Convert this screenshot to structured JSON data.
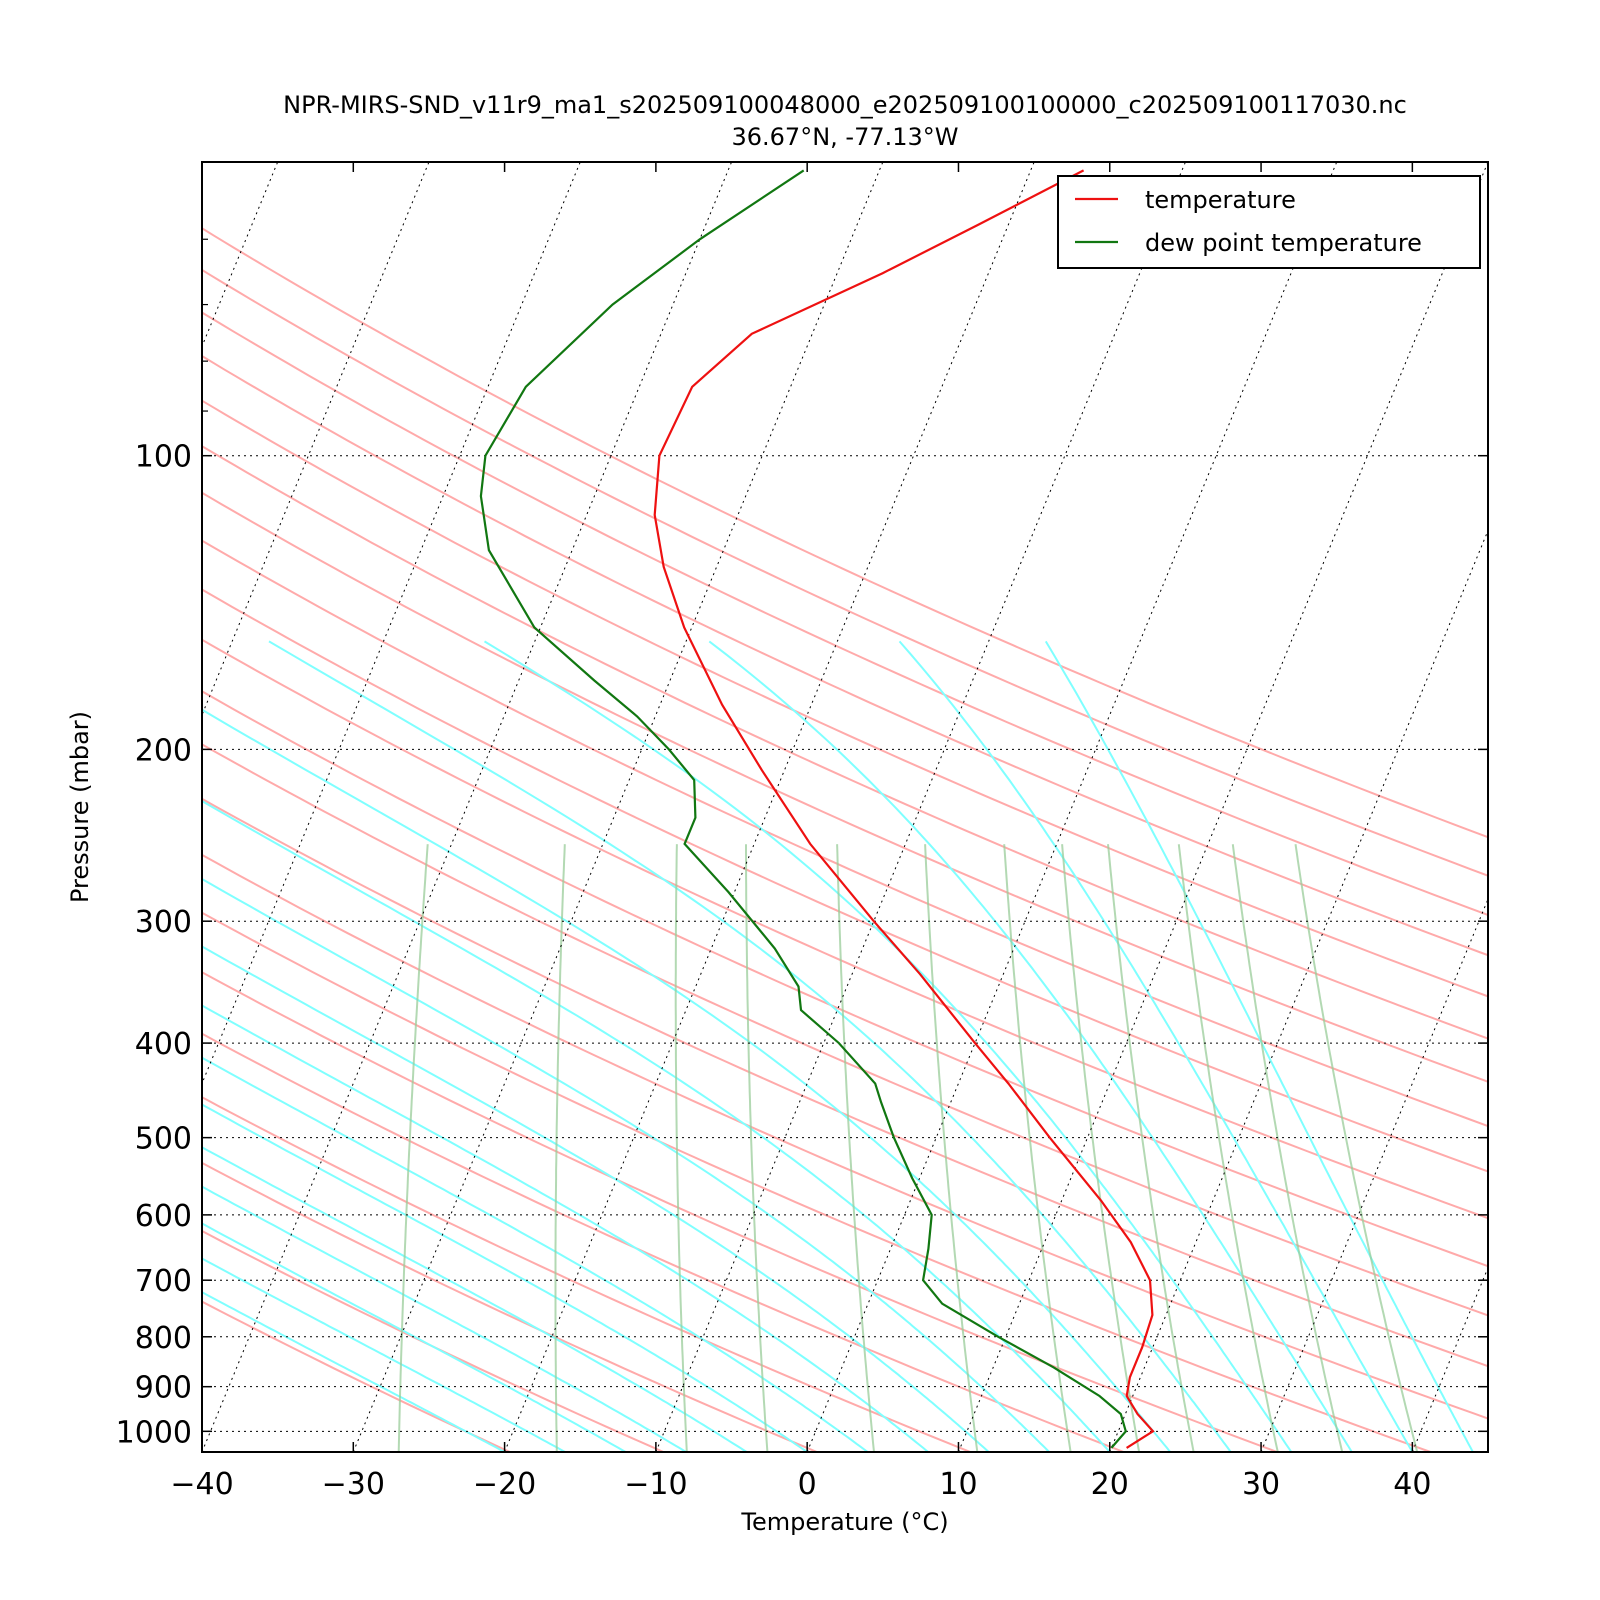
{
  "chart_data": {
    "type": "line",
    "subtype": "skew-t log-p diagram",
    "title": "NPR-MIRS-SND_v11r9_ma1_s202509100048000_e202509100100000_c202509100117030.nc",
    "subtitle": "36.67°N, -77.13°W",
    "xlabel": "Temperature (°C)",
    "ylabel": "Pressure (mbar)",
    "xlim": [
      -40,
      45
    ],
    "ylim": [
      1050,
      50
    ],
    "y_scale": "log",
    "x_ticks": [
      "−40",
      "−30",
      "−20",
      "−10",
      "0",
      "10",
      "20",
      "30",
      "40"
    ],
    "y_ticks": [
      "100",
      "200",
      "300",
      "400",
      "500",
      "600",
      "700",
      "800",
      "900",
      "1000"
    ],
    "legend_position": "top-right",
    "series": [
      {
        "name": "temperature",
        "color": "#ee1111",
        "points": [
          [
            1040,
            21.0
          ],
          [
            1000,
            22.3
          ],
          [
            960,
            20.8
          ],
          [
            920,
            19.6
          ],
          [
            880,
            19.3
          ],
          [
            820,
            19.3
          ],
          [
            760,
            19.1
          ],
          [
            700,
            18.0
          ],
          [
            640,
            15.7
          ],
          [
            580,
            12.6
          ],
          [
            500,
            7.5
          ],
          [
            440,
            3.3
          ],
          [
            400,
            0.0
          ],
          [
            340,
            -5.5
          ],
          [
            300,
            -10.0
          ],
          [
            250,
            -16.3
          ],
          [
            210,
            -21.5
          ],
          [
            180,
            -25.9
          ],
          [
            150,
            -30.5
          ],
          [
            130,
            -33.5
          ],
          [
            115,
            -35.5
          ],
          [
            100,
            -36.8
          ],
          [
            85,
            -36.5
          ],
          [
            75,
            -34.0
          ],
          [
            65,
            -27.0
          ],
          [
            58,
            -22.0
          ],
          [
            51,
            -16.5
          ]
        ]
      },
      {
        "name": "dew point temperature",
        "color": "#117711",
        "points": [
          [
            1040,
            20.0
          ],
          [
            1000,
            20.5
          ],
          [
            960,
            19.7
          ],
          [
            920,
            17.8
          ],
          [
            860,
            14.0
          ],
          [
            800,
            9.5
          ],
          [
            740,
            4.9
          ],
          [
            700,
            3.0
          ],
          [
            650,
            2.5
          ],
          [
            600,
            1.8
          ],
          [
            550,
            -0.5
          ],
          [
            500,
            -2.8
          ],
          [
            460,
            -4.6
          ],
          [
            440,
            -5.5
          ],
          [
            400,
            -9.0
          ],
          [
            370,
            -12.4
          ],
          [
            350,
            -13.2
          ],
          [
            320,
            -15.8
          ],
          [
            280,
            -20.4
          ],
          [
            250,
            -24.6
          ],
          [
            235,
            -24.6
          ],
          [
            215,
            -25.7
          ],
          [
            200,
            -28.2
          ],
          [
            185,
            -31.2
          ],
          [
            170,
            -35.0
          ],
          [
            150,
            -40.4
          ],
          [
            125,
            -45.5
          ],
          [
            110,
            -47.5
          ],
          [
            100,
            -48.3
          ],
          [
            85,
            -47.5
          ],
          [
            70,
            -44.0
          ],
          [
            60,
            -40.0
          ],
          [
            51,
            -35.0
          ]
        ]
      }
    ],
    "background_lines": {
      "isotherms": {
        "color": "#000000",
        "style": "dotted"
      },
      "isobars": {
        "color": "#000000",
        "style": "dotted"
      },
      "dry_adiabats": {
        "color": "#ffaaaa"
      },
      "moist_adiabats": {
        "color": "#7fffff"
      },
      "mixing_ratio_lines": {
        "color": "#99cc99"
      }
    }
  }
}
